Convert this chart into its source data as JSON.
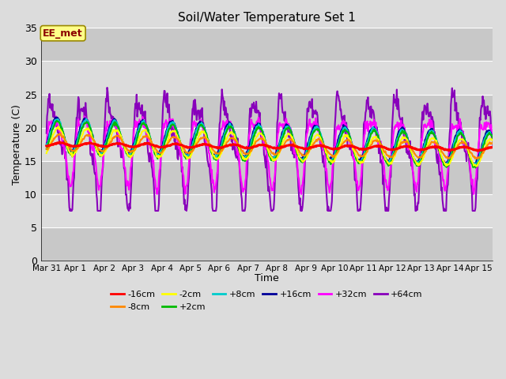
{
  "title": "Soil/Water Temperature Set 1",
  "xlabel": "Time",
  "ylabel": "Temperature (C)",
  "ylim": [
    0,
    35
  ],
  "yticks": [
    0,
    5,
    10,
    15,
    20,
    25,
    30,
    35
  ],
  "x_labels": [
    "Mar 31",
    "Apr 1",
    "Apr 2",
    "Apr 3",
    "Apr 4",
    "Apr 5",
    "Apr 6",
    "Apr 7",
    "Apr 8",
    "Apr 9",
    "Apr 10",
    "Apr 11",
    "Apr 12",
    "Apr 13",
    "Apr 14",
    "Apr 15"
  ],
  "annotation_text": "EE_met",
  "annotation_color": "#8B0000",
  "annotation_bg": "#FFFF88",
  "annotation_edge": "#998800",
  "bg_light": "#DCDCDC",
  "bg_dark": "#C8C8C8",
  "grid_color": "#FFFFFF",
  "series": [
    {
      "label": "-16cm",
      "color": "#FF0000",
      "linewidth": 2.2,
      "zorder": 10
    },
    {
      "label": "-8cm",
      "color": "#FF8800",
      "linewidth": 1.5,
      "zorder": 9
    },
    {
      "label": "-2cm",
      "color": "#FFFF00",
      "linewidth": 1.5,
      "zorder": 8
    },
    {
      "label": "+2cm",
      "color": "#00BB00",
      "linewidth": 1.5,
      "zorder": 7
    },
    {
      "label": "+8cm",
      "color": "#00CCCC",
      "linewidth": 1.5,
      "zorder": 6
    },
    {
      "label": "+16cm",
      "color": "#000099",
      "linewidth": 1.5,
      "zorder": 5
    },
    {
      "label": "+32cm",
      "color": "#FF00FF",
      "linewidth": 1.5,
      "zorder": 4
    },
    {
      "label": "+64cm",
      "color": "#8800BB",
      "linewidth": 1.5,
      "zorder": 3
    }
  ],
  "legend_ncol_row1": 6,
  "figsize": [
    6.4,
    4.8
  ],
  "dpi": 100
}
